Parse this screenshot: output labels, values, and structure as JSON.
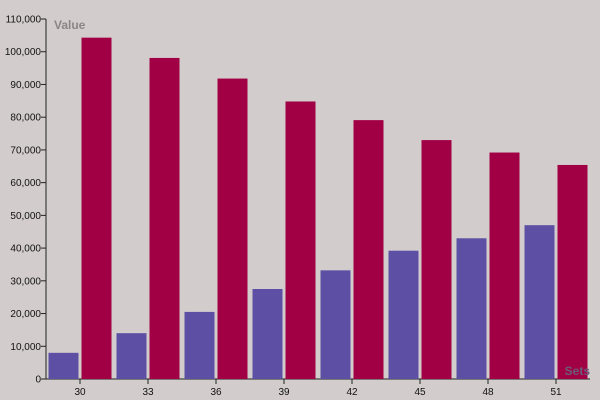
{
  "colors": {
    "background": "#d3cccc",
    "series_1": "#5d4fa3",
    "series_2": "#a10044",
    "axis": "#222222",
    "ytitle": "#8a8686",
    "xtitle": "#6b5a78"
  },
  "chart_data": {
    "type": "bar",
    "title": "",
    "xlabel": "Sets",
    "ylabel": "Value",
    "categories": [
      "30",
      "33",
      "36",
      "39",
      "42",
      "45",
      "48",
      "51"
    ],
    "series": [
      {
        "values": [
          8000,
          14000,
          20500,
          27500,
          33200,
          39200,
          43000,
          47000
        ]
      },
      {
        "values": [
          104300,
          98100,
          91800,
          84800,
          79100,
          73000,
          69200,
          65400
        ]
      }
    ],
    "ylim": [
      0,
      110000
    ],
    "yticks": [
      0,
      10000,
      20000,
      30000,
      40000,
      50000,
      60000,
      70000,
      80000,
      90000,
      100000,
      110000
    ],
    "grid": false,
    "legend": "none"
  }
}
